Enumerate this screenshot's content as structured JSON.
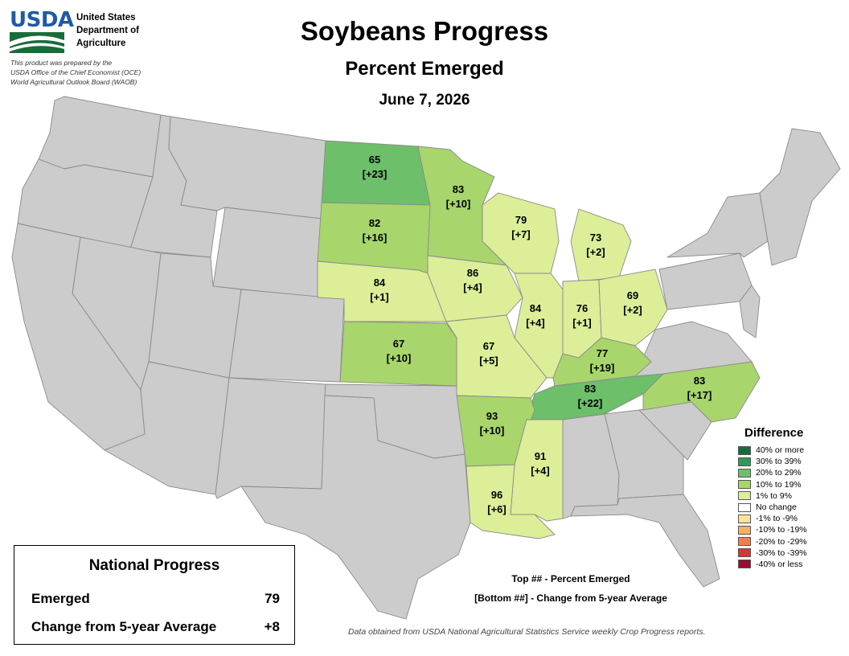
{
  "header": {
    "logo_text": "USDA",
    "agency_lines": [
      "United States",
      "Department of",
      "Agriculture"
    ],
    "prepared_by": [
      "This product was prepared by the",
      "USDA Office of the Chief Economist (OCE)",
      "World Agricultural Outlook Board (WAOB)"
    ],
    "title": "Soybeans Progress",
    "subtitle": "Percent Emerged",
    "date": "June 7, 2026"
  },
  "states": [
    {
      "name": "North Dakota",
      "code": "ND",
      "value": "65",
      "diff": "[+23]",
      "color": "#6dbf6a"
    },
    {
      "name": "Minnesota",
      "code": "MN",
      "value": "83",
      "diff": "[+10]",
      "color": "#a8d56c"
    },
    {
      "name": "South Dakota",
      "code": "SD",
      "value": "82",
      "diff": "[+16]",
      "color": "#a8d56c"
    },
    {
      "name": "Wisconsin",
      "code": "WI",
      "value": "79",
      "diff": "[+7]",
      "color": "#dcee98"
    },
    {
      "name": "Michigan",
      "code": "MI",
      "value": "73",
      "diff": "[+2]",
      "color": "#dcee98"
    },
    {
      "name": "Nebraska",
      "code": "NE",
      "value": "84",
      "diff": "[+1]",
      "color": "#dcee98"
    },
    {
      "name": "Iowa",
      "code": "IA",
      "value": "86",
      "diff": "[+4]",
      "color": "#dcee98"
    },
    {
      "name": "Illinois",
      "code": "IL",
      "value": "84",
      "diff": "[+4]",
      "color": "#dcee98"
    },
    {
      "name": "Indiana",
      "code": "IN",
      "value": "76",
      "diff": "[+1]",
      "color": "#dcee98"
    },
    {
      "name": "Ohio",
      "code": "OH",
      "value": "69",
      "diff": "[+2]",
      "color": "#dcee98"
    },
    {
      "name": "Kansas",
      "code": "KS",
      "value": "67",
      "diff": "[+10]",
      "color": "#a8d56c"
    },
    {
      "name": "Missouri",
      "code": "MO",
      "value": "67",
      "diff": "[+5]",
      "color": "#dcee98"
    },
    {
      "name": "Kentucky",
      "code": "KY",
      "value": "77",
      "diff": "[+19]",
      "color": "#a8d56c"
    },
    {
      "name": "Tennessee",
      "code": "TN",
      "value": "83",
      "diff": "[+22]",
      "color": "#6dbf6a"
    },
    {
      "name": "North Carolina",
      "code": "NC",
      "value": "83",
      "diff": "[+17]",
      "color": "#a8d56c"
    },
    {
      "name": "Arkansas",
      "code": "AR",
      "value": "93",
      "diff": "[+10]",
      "color": "#a8d56c"
    },
    {
      "name": "Mississippi",
      "code": "MS",
      "value": "91",
      "diff": "[+4]",
      "color": "#dcee98"
    },
    {
      "name": "Louisiana",
      "code": "LA",
      "value": "96",
      "diff": "[+6]",
      "color": "#dcee98"
    }
  ],
  "legend": {
    "title": "Difference",
    "items": [
      {
        "label": "40% or more",
        "color": "#1a6b3a"
      },
      {
        "label": "30% to 39%",
        "color": "#2e9a58"
      },
      {
        "label": "20% to 29%",
        "color": "#6dbf6a"
      },
      {
        "label": "10% to 19%",
        "color": "#a8d56c"
      },
      {
        "label": "1% to 9%",
        "color": "#dcee98"
      },
      {
        "label": "No change",
        "color": "#ffffff"
      },
      {
        "label": "-1% to -9%",
        "color": "#fde39a"
      },
      {
        "label": "-10% to -19%",
        "color": "#fbb15e"
      },
      {
        "label": "-20% to -29%",
        "color": "#f57c4b"
      },
      {
        "label": "-30% to -39%",
        "color": "#d7362e"
      },
      {
        "label": "-40% or less",
        "color": "#9b0a2f"
      }
    ]
  },
  "key_note": {
    "top": "Top ## - Percent Emerged",
    "bottom": "[Bottom ##] - Change from 5-year Average"
  },
  "national": {
    "title": "National Progress",
    "emerged_label": "Emerged",
    "emerged_value": "79",
    "change_label": "Change from 5-year Average",
    "change_value": "+8"
  },
  "source": "Data obtained from USDA National Agricultural Statistics Service weekly Crop Progress reports."
}
